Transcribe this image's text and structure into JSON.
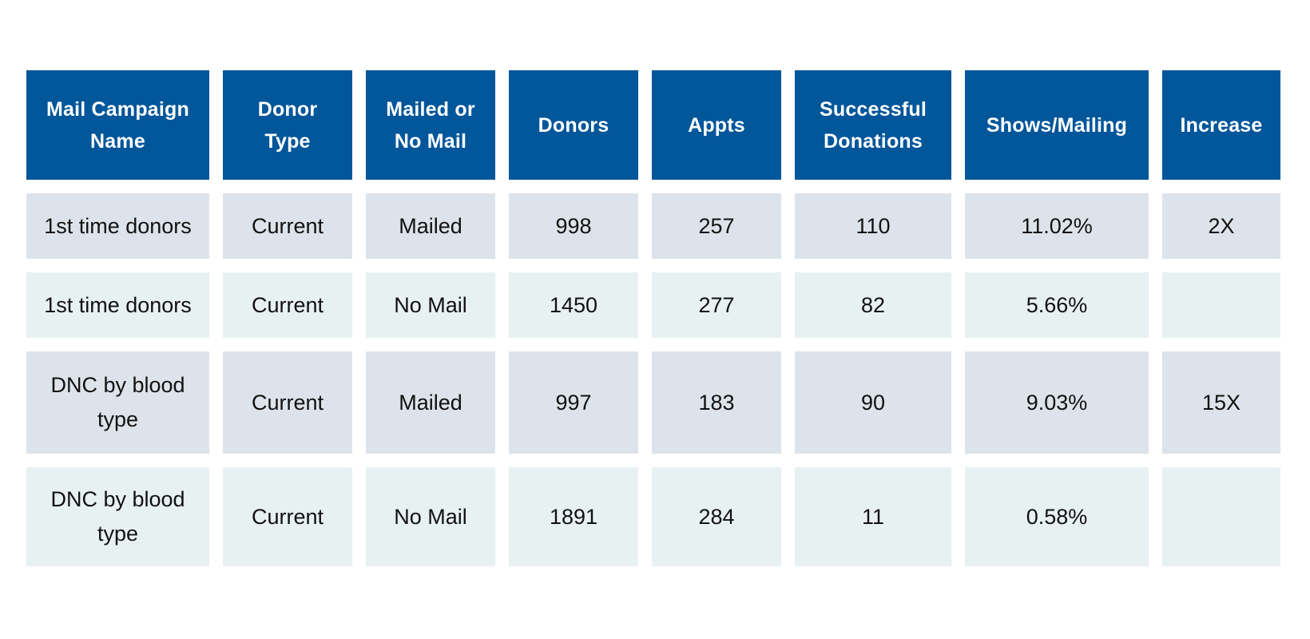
{
  "table": {
    "headers": [
      "Mail Campaign Name",
      "Donor Type",
      "Mailed or No Mail",
      "Donors",
      "Appts",
      "Successful Donations",
      "Shows/Mailing",
      "Increase"
    ],
    "rows": [
      [
        "1st time donors",
        "Current",
        "Mailed",
        "998",
        "257",
        "110",
        "11.02%",
        "2X"
      ],
      [
        "1st time donors",
        "Current",
        "No Mail",
        "1450",
        "277",
        "82",
        "5.66%",
        ""
      ],
      [
        "DNC by blood type",
        "Current",
        "Mailed",
        "997",
        "183",
        "90",
        "9.03%",
        "15X"
      ],
      [
        "DNC by blood type",
        "Current",
        "No Mail",
        "1891",
        "284",
        "11",
        "0.58%",
        ""
      ]
    ]
  },
  "colors": {
    "header_bg": "#02569a",
    "row_odd_bg": "#dde3ea",
    "row_even_bg": "#e8f1f2"
  }
}
